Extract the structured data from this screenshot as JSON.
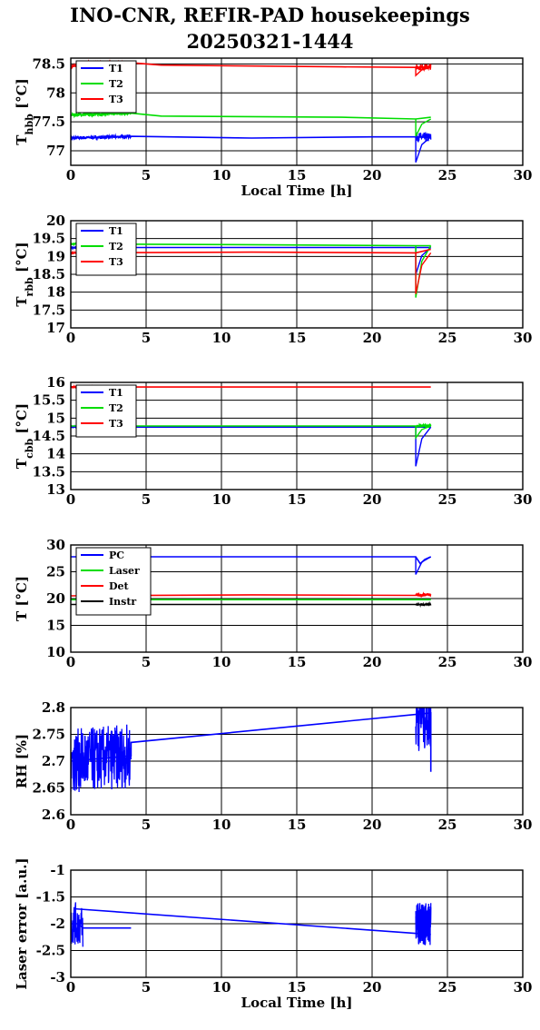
{
  "title_line1": "INO-CNR, REFIR-PAD housekeepings",
  "title_line2": "20250321-1444",
  "chart_data": [
    {
      "type": "line",
      "ylabel_main": "T",
      "ylabel_sub": "hbb",
      "ylabel_unit": " [°C]",
      "xlabel": "Local Time [h]",
      "xlim": [
        0,
        30
      ],
      "ylim": [
        76.75,
        78.6
      ],
      "xticks": [
        0,
        5,
        10,
        15,
        20,
        25,
        30
      ],
      "yticks": [
        77,
        77.5,
        78,
        78.5
      ],
      "ytick_labels": [
        "77",
        "77.5",
        "78",
        "78.5"
      ],
      "legend": "top-left",
      "series": [
        {
          "name": "T1",
          "color": "#0000ff",
          "points": [
            [
              0,
              77.22
            ],
            [
              4,
              77.25
            ],
            [
              12,
              77.22
            ],
            [
              20,
              77.24
            ],
            [
              22.9,
              77.24
            ],
            [
              23.9,
              77.23
            ]
          ],
          "noise": [
            [
              0,
              4,
              0.03
            ],
            [
              22.9,
              23.9,
              0.08
            ]
          ],
          "dips": [
            [
              22.9,
              76.8
            ]
          ]
        },
        {
          "name": "T2",
          "color": "#00dd00",
          "points": [
            [
              0,
              77.62
            ],
            [
              4,
              77.65
            ],
            [
              6,
              77.6
            ],
            [
              18,
              77.58
            ],
            [
              22.9,
              77.55
            ],
            [
              23.9,
              77.58
            ]
          ],
          "noise": [
            [
              0,
              4,
              0.03
            ]
          ],
          "dips": [
            [
              22.9,
              77.25
            ]
          ]
        },
        {
          "name": "T3",
          "color": "#ff0000",
          "points": [
            [
              0,
              78.45
            ],
            [
              1,
              78.52
            ],
            [
              4,
              78.52
            ],
            [
              6,
              78.48
            ],
            [
              18,
              78.45
            ],
            [
              22.9,
              78.44
            ],
            [
              23.9,
              78.45
            ]
          ],
          "noise": [
            [
              0,
              4,
              0.03
            ],
            [
              22.9,
              23.9,
              0.05
            ]
          ],
          "dips": [
            [
              22.9,
              78.3
            ]
          ]
        }
      ]
    },
    {
      "type": "line",
      "ylabel_main": "T",
      "ylabel_sub": "rbb",
      "ylabel_unit": " [°C]",
      "xlabel": "",
      "xlim": [
        0,
        30
      ],
      "ylim": [
        17,
        20
      ],
      "xticks": [
        0,
        5,
        10,
        15,
        20,
        25,
        30
      ],
      "yticks": [
        17,
        17.5,
        18,
        18.5,
        19,
        19.5,
        20
      ],
      "ytick_labels": [
        "17",
        "17.5",
        "18",
        "18.5",
        "19",
        "19.5",
        "20"
      ],
      "legend": "top-left",
      "series": [
        {
          "name": "T1",
          "color": "#0000ff",
          "points": [
            [
              0,
              19.25
            ],
            [
              12,
              19.25
            ],
            [
              22.9,
              19.25
            ],
            [
              23.9,
              19.25
            ]
          ],
          "noise": [
            [
              0,
              4,
              0.02
            ]
          ],
          "dips": [
            [
              22.9,
              18.5
            ]
          ]
        },
        {
          "name": "T2",
          "color": "#00dd00",
          "points": [
            [
              0,
              19.35
            ],
            [
              12,
              19.33
            ],
            [
              22.9,
              19.3
            ],
            [
              23.9,
              19.3
            ]
          ],
          "noise": [
            [
              0,
              4,
              0.02
            ]
          ],
          "dips": [
            [
              22.9,
              17.85
            ]
          ]
        },
        {
          "name": "T3",
          "color": "#ff0000",
          "points": [
            [
              0,
              19.1
            ],
            [
              12,
              19.12
            ],
            [
              22.9,
              19.1
            ],
            [
              23.9,
              19.2
            ]
          ],
          "noise": [
            [
              0,
              4,
              0.02
            ]
          ],
          "dips": [
            [
              22.9,
              17.95
            ]
          ]
        }
      ]
    },
    {
      "type": "line",
      "ylabel_main": "T",
      "ylabel_sub": "cbb",
      "ylabel_unit": " [°C]",
      "xlabel": "",
      "xlim": [
        0,
        30
      ],
      "ylim": [
        13,
        16
      ],
      "xticks": [
        0,
        5,
        10,
        15,
        20,
        25,
        30
      ],
      "yticks": [
        13,
        13.5,
        14,
        14.5,
        15,
        15.5,
        16
      ],
      "ytick_labels": [
        "13",
        "13.5",
        "14",
        "14.5",
        "15",
        "15.5",
        "16"
      ],
      "legend": "top-left",
      "series": [
        {
          "name": "T1",
          "color": "#0000ff",
          "points": [
            [
              0,
              14.75
            ],
            [
              12,
              14.75
            ],
            [
              22.9,
              14.75
            ],
            [
              23.9,
              14.75
            ]
          ],
          "noise": [
            [
              0,
              4,
              0.02
            ]
          ],
          "dips": [
            [
              22.9,
              13.65
            ]
          ]
        },
        {
          "name": "T2",
          "color": "#00dd00",
          "points": [
            [
              0,
              14.78
            ],
            [
              12,
              14.78
            ],
            [
              22.9,
              14.78
            ],
            [
              23.9,
              14.78
            ]
          ],
          "noise": [
            [
              22.9,
              23.9,
              0.05
            ]
          ],
          "dips": [
            [
              22.9,
              14.45
            ]
          ]
        },
        {
          "name": "T3",
          "color": "#ff0000",
          "points": [
            [
              0,
              15.87
            ],
            [
              22.9,
              15.87
            ],
            [
              23.9,
              15.87
            ]
          ],
          "noise": [
            [
              0,
              4,
              0.02
            ]
          ],
          "dips": []
        }
      ]
    },
    {
      "type": "line",
      "ylabel_main": "T [°C]",
      "ylabel_sub": "",
      "ylabel_unit": "",
      "xlabel": "",
      "xlim": [
        0,
        30
      ],
      "ylim": [
        10,
        30
      ],
      "xticks": [
        0,
        5,
        10,
        15,
        20,
        25,
        30
      ],
      "yticks": [
        10,
        15,
        20,
        25,
        30
      ],
      "ytick_labels": [
        "10",
        "15",
        "20",
        "25",
        "30"
      ],
      "legend": "top-left",
      "series": [
        {
          "name": "PC",
          "color": "#0000ff",
          "points": [
            [
              0,
              27.8
            ],
            [
              22.9,
              27.8
            ],
            [
              23.2,
              26.5
            ],
            [
              23.5,
              27.3
            ],
            [
              23.9,
              27.8
            ]
          ],
          "noise": [],
          "dips": [
            [
              22.9,
              24.5
            ]
          ]
        },
        {
          "name": "Laser",
          "color": "#00dd00",
          "points": [
            [
              0,
              19.8
            ],
            [
              22.9,
              19.8
            ],
            [
              23.9,
              19.8
            ]
          ],
          "noise": [],
          "dips": []
        },
        {
          "name": "Det",
          "color": "#ff0000",
          "points": [
            [
              0,
              20.5
            ],
            [
              12,
              20.7
            ],
            [
              22.9,
              20.6
            ],
            [
              23.9,
              20.8
            ]
          ],
          "noise": [
            [
              22.9,
              23.9,
              0.3
            ]
          ],
          "dips": []
        },
        {
          "name": "Instr",
          "color": "#000000",
          "points": [
            [
              0,
              18.9
            ],
            [
              22.9,
              18.9
            ],
            [
              23.9,
              18.9
            ]
          ],
          "noise": [
            [
              22.9,
              23.9,
              0.2
            ]
          ],
          "dips": []
        }
      ]
    },
    {
      "type": "line",
      "ylabel_main": "RH [%]",
      "ylabel_sub": "",
      "ylabel_unit": "",
      "xlabel": "",
      "xlim": [
        0,
        30
      ],
      "ylim": [
        2.6,
        2.8
      ],
      "xticks": [
        0,
        5,
        10,
        15,
        20,
        25,
        30
      ],
      "yticks": [
        2.6,
        2.65,
        2.7,
        2.75,
        2.8
      ],
      "ytick_labels": [
        "2.6",
        "2.65",
        "2.7",
        "2.75",
        "2.8"
      ],
      "legend": "none",
      "series": [
        {
          "name": "",
          "color": "#0000ff",
          "points": [
            [
              0,
              2.7
            ],
            [
              4,
              2.71
            ],
            [
              4,
              2.735
            ],
            [
              23.9,
              2.79
            ],
            [
              23.9,
              2.68
            ]
          ],
          "noise": [
            [
              0,
              4,
              0.06
            ],
            [
              22.9,
              23.9,
              0.07
            ]
          ],
          "dips": []
        }
      ]
    },
    {
      "type": "line",
      "ylabel_main": "Laser error [a.u.]",
      "ylabel_sub": "",
      "ylabel_unit": "",
      "xlabel": "Local Time [h]",
      "xlim": [
        0,
        30
      ],
      "ylim": [
        -3,
        -1
      ],
      "xticks": [
        0,
        5,
        10,
        15,
        20,
        25,
        30
      ],
      "yticks": [
        -3,
        -2.5,
        -2,
        -1.5,
        -1
      ],
      "ytick_labels": [
        "-3",
        "-2.5",
        "-2",
        "-1.5",
        "-1"
      ],
      "legend": "none",
      "series": [
        {
          "name": "",
          "color": "#0000ff",
          "points": [
            [
              0,
              -2.0
            ],
            [
              0.5,
              -2.0
            ],
            [
              0.8,
              -2.08
            ],
            [
              4,
              -2.08
            ]
          ],
          "noise": [
            [
              0,
              0.8,
              0.4
            ],
            [
              22.9,
              23.9,
              0.4
            ]
          ],
          "dips": []
        },
        {
          "name": "",
          "color": "#0000ff",
          "points": [
            [
              0.2,
              -1.72
            ],
            [
              23.9,
              -2.2
            ]
          ],
          "noise": [],
          "dips": []
        },
        {
          "name": "",
          "color": "#0000ff",
          "points": [
            [
              22.9,
              -2.0
            ],
            [
              23.9,
              -2.0
            ]
          ],
          "noise": [
            [
              22.9,
              23.9,
              0.4
            ]
          ],
          "dips": []
        }
      ]
    }
  ]
}
